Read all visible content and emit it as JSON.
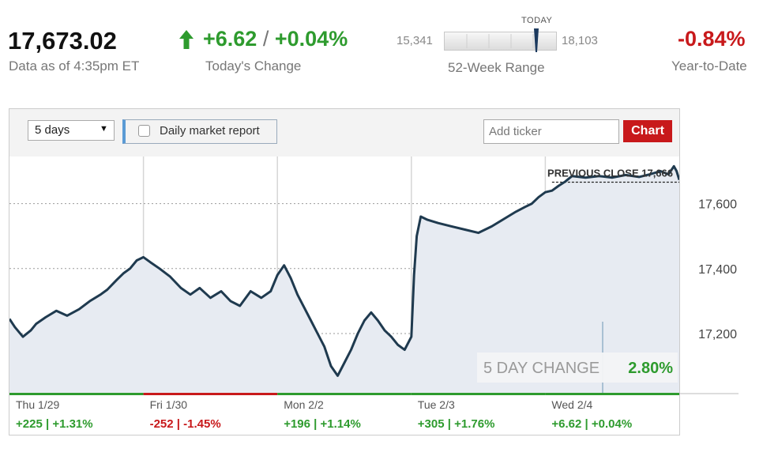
{
  "header": {
    "price": "17,673.02",
    "as_of": "Data as of 4:35pm ET",
    "change_points": "+6.62",
    "change_sep": "/",
    "change_pct": "+0.04%",
    "change_label": "Today's Change",
    "range_low": "15,341",
    "range_high": "18,103",
    "range_today_label": "TODAY",
    "range_label": "52-Week Range",
    "ytd": "-0.84%",
    "ytd_label": "Year-to-Date",
    "up_color": "#2e9b2e",
    "down_color": "#c8191b"
  },
  "toolbar": {
    "period_value": "5 days",
    "report_label": "Daily market report",
    "ticker_placeholder": "Add ticker",
    "chart_button": "Chart"
  },
  "chart_data": {
    "type": "area",
    "ylim": [
      17015,
      17745
    ],
    "y_ticks": [
      17200,
      17400,
      17600
    ],
    "y_tick_labels": [
      "17,200",
      "17,400",
      "17,600"
    ],
    "grid": true,
    "previous_close": {
      "label": "PREVIOUS CLOSE 17,666",
      "value": 17666
    },
    "change_callout": {
      "label": "5 DAY CHANGE",
      "value": "2.80%"
    },
    "series": [
      {
        "values": [
          [
            0,
            17245
          ],
          [
            0.04,
            17220
          ],
          [
            0.1,
            17190
          ],
          [
            0.16,
            17210
          ],
          [
            0.2,
            17230
          ],
          [
            0.27,
            17250
          ],
          [
            0.35,
            17270
          ],
          [
            0.43,
            17255
          ],
          [
            0.52,
            17275
          ],
          [
            0.6,
            17300
          ],
          [
            0.68,
            17320
          ],
          [
            0.73,
            17335
          ],
          [
            0.8,
            17365
          ],
          [
            0.85,
            17385
          ],
          [
            0.9,
            17400
          ],
          [
            0.95,
            17425
          ],
          [
            1.0,
            17435
          ],
          [
            1.05,
            17420
          ],
          [
            1.12,
            17400
          ],
          [
            1.2,
            17375
          ],
          [
            1.28,
            17340
          ],
          [
            1.35,
            17320
          ],
          [
            1.42,
            17340
          ],
          [
            1.5,
            17310
          ],
          [
            1.58,
            17330
          ],
          [
            1.65,
            17300
          ],
          [
            1.72,
            17285
          ],
          [
            1.8,
            17330
          ],
          [
            1.88,
            17310
          ],
          [
            1.95,
            17330
          ],
          [
            2.0,
            17380
          ],
          [
            2.05,
            17410
          ],
          [
            2.1,
            17370
          ],
          [
            2.15,
            17320
          ],
          [
            2.2,
            17280
          ],
          [
            2.25,
            17240
          ],
          [
            2.3,
            17200
          ],
          [
            2.35,
            17160
          ],
          [
            2.4,
            17100
          ],
          [
            2.45,
            17070
          ],
          [
            2.5,
            17110
          ],
          [
            2.55,
            17150
          ],
          [
            2.6,
            17200
          ],
          [
            2.65,
            17240
          ],
          [
            2.7,
            17265
          ],
          [
            2.75,
            17240
          ],
          [
            2.8,
            17210
          ],
          [
            2.85,
            17190
          ],
          [
            2.9,
            17165
          ],
          [
            2.95,
            17150
          ],
          [
            3.0,
            17190
          ],
          [
            3.02,
            17380
          ],
          [
            3.04,
            17500
          ],
          [
            3.07,
            17560
          ],
          [
            3.12,
            17550
          ],
          [
            3.2,
            17540
          ],
          [
            3.3,
            17530
          ],
          [
            3.4,
            17520
          ],
          [
            3.5,
            17510
          ],
          [
            3.6,
            17530
          ],
          [
            3.7,
            17555
          ],
          [
            3.78,
            17575
          ],
          [
            3.85,
            17590
          ],
          [
            3.9,
            17600
          ],
          [
            3.95,
            17620
          ],
          [
            4.0,
            17635
          ],
          [
            4.05,
            17640
          ],
          [
            4.1,
            17655
          ],
          [
            4.15,
            17668
          ],
          [
            4.2,
            17685
          ],
          [
            4.3,
            17680
          ],
          [
            4.4,
            17685
          ],
          [
            4.5,
            17680
          ],
          [
            4.6,
            17688
          ],
          [
            4.7,
            17682
          ],
          [
            4.78,
            17690
          ],
          [
            4.86,
            17700
          ],
          [
            4.92,
            17690
          ],
          [
            4.96,
            17715
          ],
          [
            4.98,
            17700
          ],
          [
            5.0,
            17673
          ]
        ]
      }
    ],
    "days": [
      {
        "label": "Thu 1/29",
        "change": "+225 | +1.31%",
        "direction": "up"
      },
      {
        "label": "Fri 1/30",
        "change": "-252 | -1.45%",
        "direction": "down"
      },
      {
        "label": "Mon 2/2",
        "change": "+196 | +1.14%",
        "direction": "up"
      },
      {
        "label": "Tue 2/3",
        "change": "+305 | +1.76%",
        "direction": "up"
      },
      {
        "label": "Wed 2/4",
        "change": "+6.62 | +0.04%",
        "direction": "up"
      }
    ]
  }
}
